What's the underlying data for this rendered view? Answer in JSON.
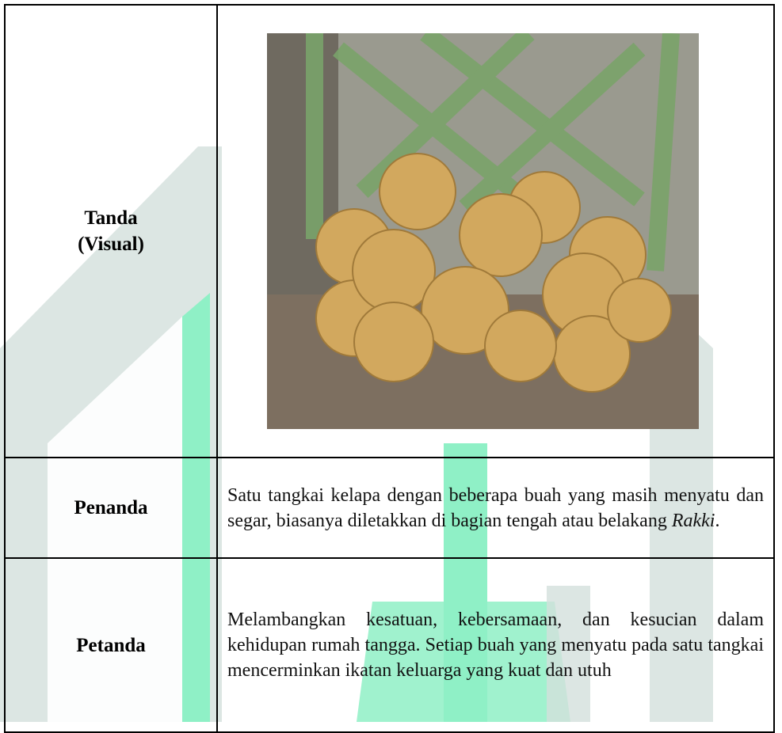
{
  "table": {
    "rows": [
      {
        "label_lines": [
          "Tanda",
          "(Visual)"
        ]
      },
      {
        "label": "Penanda",
        "text_parts": [
          "Satu tangkai kelapa dengan beberapa buah yang masih menyatu dan segar, biasanya diletakkan di bagian tengah atau belakang ",
          "Rakki",
          "."
        ]
      },
      {
        "label": "Petanda",
        "text": "Melambangkan kesatuan, kebersamaan, dan kesucian dalam kehidupan rumah tangga. Setiap buah yang menyatu pada satu tangkai mencerminkan ikatan keluarga yang kuat dan utuh"
      }
    ]
  }
}
